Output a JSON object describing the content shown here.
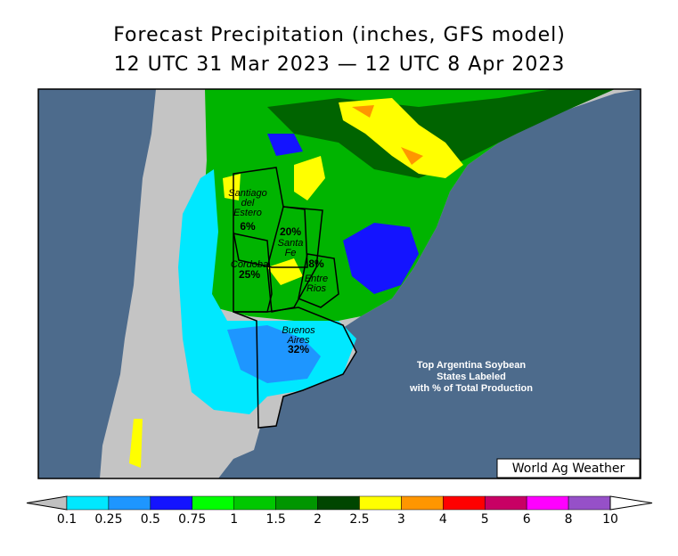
{
  "header": {
    "title": "Forecast Precipitation (inches, GFS model)",
    "subtitle": "12 UTC 31 Mar 2023 — 12 UTC 8 Apr 2023"
  },
  "states": [
    {
      "name_lines": [
        "Santiago",
        "del",
        "Estero"
      ],
      "share": "6%"
    },
    {
      "name_lines": [
        "Santa",
        "Fe"
      ],
      "share": "20%"
    },
    {
      "name_lines": [
        "Cordoba"
      ],
      "share": "25%"
    },
    {
      "name_lines": [
        "Entre",
        "Rios"
      ],
      "share": "8%"
    },
    {
      "name_lines": [
        "Buenos",
        "Aires"
      ],
      "share": "32%"
    }
  ],
  "note": [
    "Top Argentina Soybean",
    "States Labeled",
    "with % of Total Production"
  ],
  "credit": "World Ag Weather",
  "legend": {
    "ticks": [
      "0.1",
      "0.25",
      "0.5",
      "0.75",
      "1",
      "1.5",
      "2",
      "2.5",
      "3",
      "4",
      "5",
      "6",
      "8",
      "10"
    ],
    "colors": [
      "#00e8ff",
      "#1e96ff",
      "#1414ff",
      "#00ff00",
      "#00c800",
      "#009600",
      "#004600",
      "#ffff00",
      "#ff9600",
      "#ff0000",
      "#c80064",
      "#ff00ff",
      "#9650c8"
    ]
  }
}
